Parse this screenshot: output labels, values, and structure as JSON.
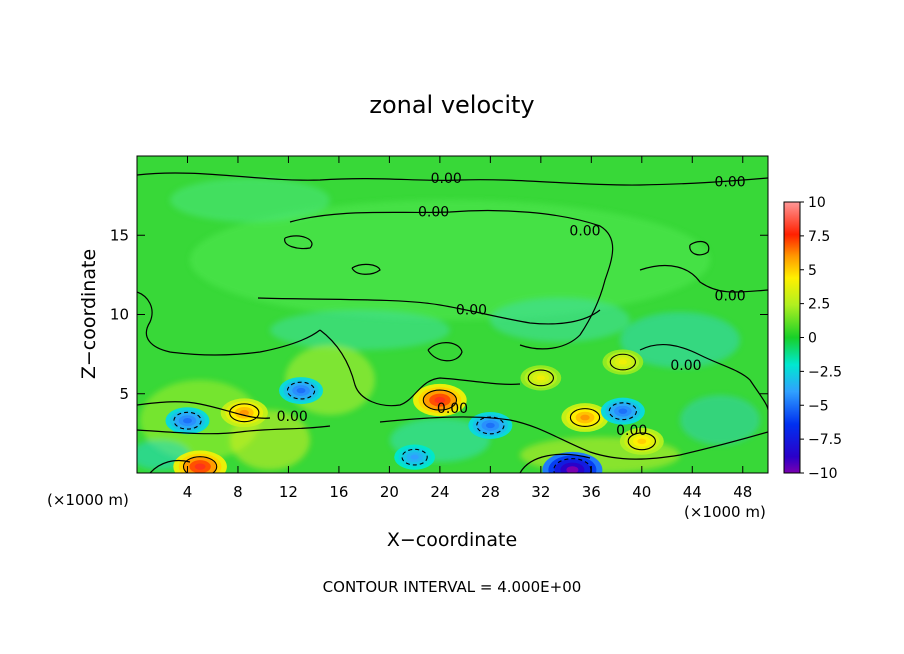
{
  "chart_data": {
    "type": "heatmap",
    "title": "zonal velocity",
    "xlabel": "X−coordinate",
    "ylabel": "Z−coordinate",
    "x_unit": "(×1000 m)",
    "x_unit_right": "(×1000 m)",
    "footer": "CONTOUR INTERVAL = 4.000E+00",
    "xlim": [
      0,
      50
    ],
    "ylim": [
      0,
      20
    ],
    "x_ticks": [
      4,
      8,
      12,
      16,
      20,
      24,
      28,
      32,
      36,
      40,
      44,
      48
    ],
    "y_ticks": [
      5,
      10,
      15
    ],
    "x_tick_labels": [
      "4",
      "8",
      "12",
      "16",
      "20",
      "24",
      "28",
      "32",
      "36",
      "40",
      "44",
      "48"
    ],
    "y_tick_labels": [
      "5",
      "10",
      "15"
    ],
    "colorbar": {
      "min": -10,
      "max": 10,
      "ticks": [
        10,
        7.5,
        5,
        2.5,
        0,
        -2.5,
        -5,
        -7.5,
        -10
      ],
      "tick_labels": [
        "10",
        "7.5",
        "5",
        "2.5",
        "0",
        "−2.5",
        "−5",
        "−7.5",
        "−10"
      ]
    },
    "contour_labels": [
      {
        "text": "0.00",
        "x": 24.5,
        "z": 18.6
      },
      {
        "text": "0.00",
        "x": 47,
        "z": 18.4
      },
      {
        "text": "0.00",
        "x": 23.5,
        "z": 16.5
      },
      {
        "text": "0.00",
        "x": 35.5,
        "z": 15.3
      },
      {
        "text": "0.00",
        "x": 26.5,
        "z": 10.3
      },
      {
        "text": "0.00",
        "x": 47,
        "z": 11.2
      },
      {
        "text": "0.00",
        "x": 43.5,
        "z": 6.8
      },
      {
        "text": "0.00",
        "x": 12.3,
        "z": 3.6
      },
      {
        "text": "0.00",
        "x": 25,
        "z": 4.1
      },
      {
        "text": "0.00",
        "x": 39.2,
        "z": 2.7
      }
    ],
    "features": [
      {
        "sign": "positive",
        "x": 24,
        "z": 4.6,
        "amplitude": 8
      },
      {
        "sign": "positive",
        "x": 8.5,
        "z": 3.8,
        "amplitude": 6
      },
      {
        "sign": "positive",
        "x": 35.5,
        "z": 3.5,
        "amplitude": 6
      },
      {
        "sign": "positive",
        "x": 40,
        "z": 2.0,
        "amplitude": 5
      },
      {
        "sign": "positive",
        "x": 5,
        "z": 0.4,
        "amplitude": 8
      },
      {
        "sign": "positive",
        "x": 32,
        "z": 6.0,
        "amplitude": 4
      },
      {
        "sign": "positive",
        "x": 38.5,
        "z": 7.0,
        "amplitude": 4
      },
      {
        "sign": "negative",
        "x": 4,
        "z": 3.3,
        "amplitude": -5
      },
      {
        "sign": "negative",
        "x": 13,
        "z": 5.2,
        "amplitude": -5
      },
      {
        "sign": "negative",
        "x": 28,
        "z": 3.0,
        "amplitude": -5
      },
      {
        "sign": "negative",
        "x": 38.5,
        "z": 3.9,
        "amplitude": -5
      },
      {
        "sign": "negative",
        "x": 22,
        "z": 1.0,
        "amplitude": -4
      },
      {
        "sign": "negative",
        "x": 34.5,
        "z": 0.2,
        "amplitude": -10
      }
    ]
  }
}
